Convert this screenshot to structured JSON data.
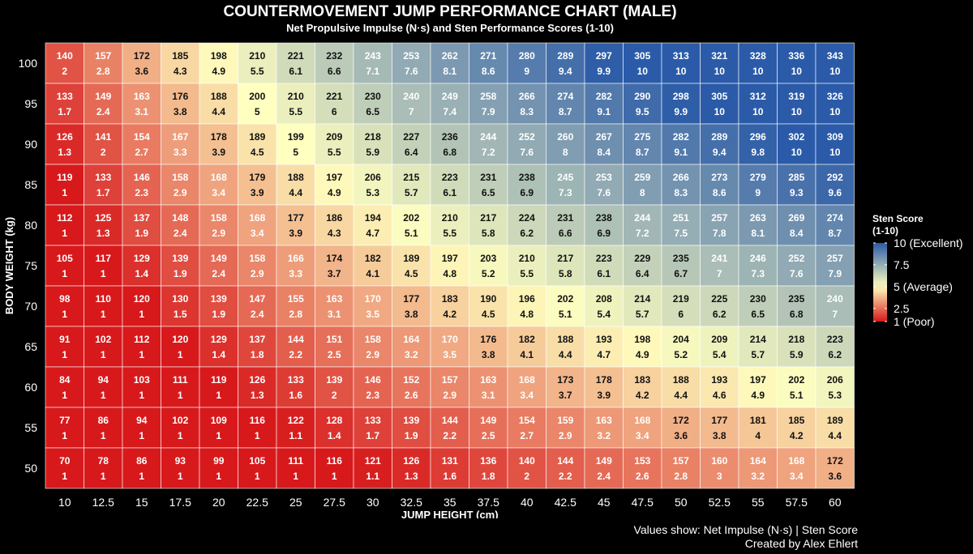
{
  "chart_data": {
    "type": "heatmap",
    "title": "COUNTERMOVEMENT JUMP PERFORMANCE CHART (MALE)",
    "subtitle": "Net Propulsive Impulse (N·s) and Sten Performance Scores (1-10)",
    "xlabel": "JUMP HEIGHT (cm)",
    "ylabel": "BODY WEIGHT (kg)",
    "x": [
      "10",
      "12.5",
      "15",
      "17.5",
      "20",
      "22.5",
      "25",
      "27.5",
      "30",
      "32.5",
      "35",
      "37.5",
      "40",
      "42.5",
      "45",
      "47.5",
      "50",
      "52.5",
      "55",
      "57.5",
      "60"
    ],
    "y": [
      "100",
      "95",
      "90",
      "85",
      "80",
      "75",
      "70",
      "65",
      "60",
      "55",
      "50"
    ],
    "impulse": [
      [
        140,
        157,
        172,
        185,
        198,
        210,
        221,
        232,
        243,
        253,
        262,
        271,
        280,
        289,
        297,
        305,
        313,
        321,
        328,
        336,
        343
      ],
      [
        133,
        149,
        163,
        176,
        188,
        200,
        210,
        221,
        230,
        240,
        249,
        258,
        266,
        274,
        282,
        290,
        298,
        305,
        312,
        319,
        326
      ],
      [
        126,
        141,
        154,
        167,
        178,
        189,
        199,
        209,
        218,
        227,
        236,
        244,
        252,
        260,
        267,
        275,
        282,
        289,
        296,
        302,
        309
      ],
      [
        119,
        133,
        146,
        158,
        168,
        179,
        188,
        197,
        206,
        215,
        223,
        231,
        238,
        245,
        253,
        259,
        266,
        273,
        279,
        285,
        292
      ],
      [
        112,
        125,
        137,
        148,
        158,
        168,
        177,
        186,
        194,
        202,
        210,
        217,
        224,
        231,
        238,
        244,
        251,
        257,
        263,
        269,
        274
      ],
      [
        105,
        117,
        129,
        139,
        149,
        158,
        166,
        174,
        182,
        189,
        197,
        203,
        210,
        217,
        223,
        229,
        235,
        241,
        246,
        252,
        257
      ],
      [
        98,
        110,
        120,
        130,
        139,
        147,
        155,
        163,
        170,
        177,
        183,
        190,
        196,
        202,
        208,
        214,
        219,
        225,
        230,
        235,
        240
      ],
      [
        91,
        102,
        112,
        120,
        129,
        137,
        144,
        151,
        158,
        164,
        170,
        176,
        182,
        188,
        193,
        198,
        204,
        209,
        214,
        218,
        223
      ],
      [
        84,
        94,
        103,
        111,
        119,
        126,
        133,
        139,
        146,
        152,
        157,
        163,
        168,
        173,
        178,
        183,
        188,
        193,
        197,
        202,
        206
      ],
      [
        77,
        86,
        94,
        102,
        109,
        116,
        122,
        128,
        133,
        139,
        144,
        149,
        154,
        159,
        163,
        168,
        172,
        177,
        181,
        185,
        189
      ],
      [
        70,
        78,
        86,
        93,
        99,
        105,
        111,
        116,
        121,
        126,
        131,
        136,
        140,
        144,
        149,
        153,
        157,
        160,
        164,
        168,
        172
      ]
    ],
    "sten": [
      [
        "2",
        "2.8",
        "3.6",
        "4.3",
        "4.9",
        "5.5",
        "6.1",
        "6.6",
        "7.1",
        "7.6",
        "8.1",
        "8.6",
        "9",
        "9.4",
        "9.9",
        "10",
        "10",
        "10",
        "10",
        "10",
        "10"
      ],
      [
        "1.7",
        "2.4",
        "3.1",
        "3.8",
        "4.4",
        "5",
        "5.5",
        "6",
        "6.5",
        "7",
        "7.4",
        "7.9",
        "8.3",
        "8.7",
        "9.1",
        "9.5",
        "9.9",
        "10",
        "10",
        "10",
        "10"
      ],
      [
        "1.3",
        "2",
        "2.7",
        "3.3",
        "3.9",
        "4.5",
        "5",
        "5.5",
        "5.9",
        "6.4",
        "6.8",
        "7.2",
        "7.6",
        "8",
        "8.4",
        "8.7",
        "9.1",
        "9.4",
        "9.8",
        "10",
        "10"
      ],
      [
        "1",
        "1.7",
        "2.3",
        "2.9",
        "3.4",
        "3.9",
        "4.4",
        "4.9",
        "5.3",
        "5.7",
        "6.1",
        "6.5",
        "6.9",
        "7.3",
        "7.6",
        "8",
        "8.3",
        "8.6",
        "9",
        "9.3",
        "9.6"
      ],
      [
        "1",
        "1.3",
        "1.9",
        "2.4",
        "2.9",
        "3.4",
        "3.9",
        "4.3",
        "4.7",
        "5.1",
        "5.5",
        "5.8",
        "6.2",
        "6.6",
        "6.9",
        "7.2",
        "7.5",
        "7.8",
        "8.1",
        "8.4",
        "8.7"
      ],
      [
        "1",
        "1",
        "1.4",
        "1.9",
        "2.4",
        "2.9",
        "3.3",
        "3.7",
        "4.1",
        "4.5",
        "4.8",
        "5.2",
        "5.5",
        "5.8",
        "6.1",
        "6.4",
        "6.7",
        "7",
        "7.3",
        "7.6",
        "7.9"
      ],
      [
        "1",
        "1",
        "1",
        "1.5",
        "1.9",
        "2.4",
        "2.8",
        "3.1",
        "3.5",
        "3.8",
        "4.2",
        "4.5",
        "4.8",
        "5.1",
        "5.4",
        "5.7",
        "6",
        "6.2",
        "6.5",
        "6.8",
        "7"
      ],
      [
        "1",
        "1",
        "1",
        "1",
        "1.4",
        "1.8",
        "2.2",
        "2.5",
        "2.9",
        "3.2",
        "3.5",
        "3.8",
        "4.1",
        "4.4",
        "4.7",
        "4.9",
        "5.2",
        "5.4",
        "5.7",
        "5.9",
        "6.2"
      ],
      [
        "1",
        "1",
        "1",
        "1",
        "1",
        "1.3",
        "1.6",
        "2",
        "2.3",
        "2.6",
        "2.9",
        "3.1",
        "3.4",
        "3.7",
        "3.9",
        "4.2",
        "4.4",
        "4.6",
        "4.9",
        "5.1",
        "5.3"
      ],
      [
        "1",
        "1",
        "1",
        "1",
        "1",
        "1",
        "1.1",
        "1.4",
        "1.7",
        "1.9",
        "2.2",
        "2.5",
        "2.7",
        "2.9",
        "3.2",
        "3.4",
        "3.6",
        "3.8",
        "4",
        "4.2",
        "4.4"
      ],
      [
        "1",
        "1",
        "1",
        "1",
        "1",
        "1",
        "1",
        "1",
        "1.1",
        "1.3",
        "1.6",
        "1.8",
        "2",
        "2.2",
        "2.4",
        "2.6",
        "2.8",
        "3",
        "3.2",
        "3.4",
        "3.6"
      ]
    ],
    "legend": {
      "title_line1": "Sten Score",
      "title_line2": "(1-10)",
      "placement": "right",
      "ticks": [
        {
          "value": 10,
          "label": "10 (Excellent)"
        },
        {
          "value": 7.5,
          "label": "7.5"
        },
        {
          "value": 5,
          "label": "5 (Average)"
        },
        {
          "value": 2.5,
          "label": "2.5"
        },
        {
          "value": 1,
          "label": "1 (Poor)"
        }
      ]
    },
    "color_scale": {
      "min": 1,
      "mid": 5,
      "max": 10,
      "low": "#d7191c",
      "mid_color": "#ffffbf",
      "high": "#2b5ba8"
    },
    "grid": false
  },
  "captions": {
    "line1": "Values show: Net Impulse (N·s) | Sten Score",
    "line2": "Created by Alex Ehlert"
  }
}
